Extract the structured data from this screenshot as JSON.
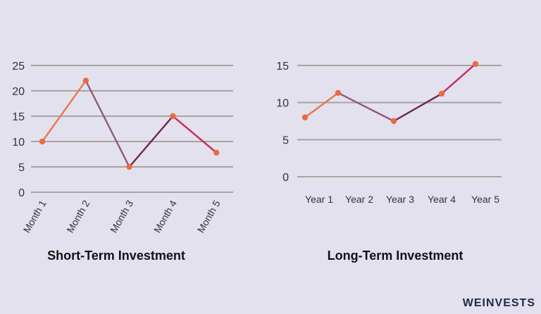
{
  "brand": "WEINVESTS",
  "chart_data": [
    {
      "type": "line",
      "title": "Short-Term Investment",
      "categories": [
        "Month 1",
        "Month 2",
        "Month 3",
        "Month 4",
        "Month 5"
      ],
      "values": [
        10,
        22,
        5,
        15,
        7.8
      ],
      "ylim": [
        0,
        25
      ],
      "yticks": [
        0,
        5,
        10,
        15,
        20,
        25
      ],
      "grid": true,
      "segment_colors": [
        "#e8774f",
        "#8a5a7e",
        "#6e2548",
        "#c72960"
      ],
      "marker_color": "#ea6a44",
      "xlabel_rotation": -60
    },
    {
      "type": "line",
      "title": "Long-Term Investment",
      "categories": [
        "Year 1",
        "Year 2",
        "Year 3",
        "Year 4",
        "Year 5"
      ],
      "values": [
        8,
        11.3,
        7.5,
        11.2,
        15.2
      ],
      "ylim": [
        0,
        15
      ],
      "yticks": [
        0,
        5,
        10,
        15
      ],
      "grid": true,
      "segment_colors": [
        "#e8774f",
        "#8a5a7e",
        "#6e2548",
        "#c72960"
      ],
      "marker_color": "#ea6a44",
      "xlabel_rotation": 0
    }
  ]
}
